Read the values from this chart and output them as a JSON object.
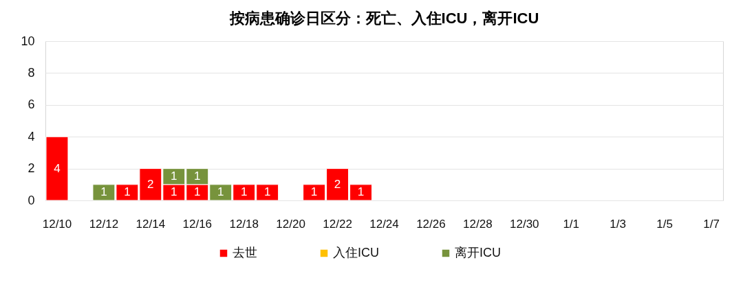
{
  "chart_data": {
    "type": "bar",
    "title": "按病患确诊日区分：死亡、入住ICU，离开ICU",
    "categories": [
      "12/10",
      null,
      "12/12",
      null,
      "12/14",
      null,
      "12/16",
      null,
      "12/18",
      null,
      "12/20",
      null,
      "12/22",
      null,
      "12/24",
      null,
      "12/26",
      null,
      "12/28",
      null,
      "12/30",
      null,
      "1/1",
      null,
      "1/3",
      null,
      "1/5",
      null,
      "1/7"
    ],
    "series": [
      {
        "name": "去世",
        "color": "#ff0000",
        "values": [
          4,
          null,
          null,
          1,
          2,
          1,
          1,
          null,
          1,
          1,
          null,
          1,
          2,
          1,
          null,
          null,
          null,
          null,
          null,
          null,
          null,
          null,
          null,
          null,
          null,
          null,
          null,
          null,
          null
        ]
      },
      {
        "name": "入住ICU",
        "color": "#ffc000",
        "values": [
          null,
          null,
          null,
          null,
          null,
          null,
          null,
          null,
          null,
          null,
          null,
          null,
          null,
          null,
          null,
          null,
          null,
          null,
          null,
          null,
          null,
          null,
          null,
          null,
          null,
          null,
          null,
          null,
          null
        ]
      },
      {
        "name": "离开ICU",
        "color": "#77933c",
        "values": [
          null,
          null,
          1,
          null,
          null,
          1,
          1,
          1,
          null,
          null,
          null,
          null,
          null,
          null,
          null,
          null,
          null,
          null,
          null,
          null,
          null,
          null,
          null,
          null,
          null,
          null,
          null,
          null,
          null
        ]
      }
    ],
    "stacked": true,
    "ylim": [
      0,
      10
    ],
    "yticks": [
      0,
      2,
      4,
      6,
      8,
      10
    ],
    "grid": "y",
    "legend": "bottom",
    "data_labels": true
  }
}
